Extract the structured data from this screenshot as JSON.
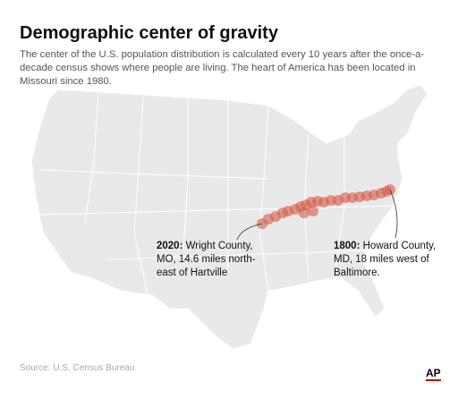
{
  "header": {
    "title": "Demographic center of gravity",
    "subtitle": "The center of the U.S. population distribution is calculated every 10 years after the once-a-decade census shows where people are living. The heart of America has been located in Missouri since 1980."
  },
  "annotations": [
    {
      "year": "2020:",
      "lines": [
        "Wright County,",
        "MO, 14.6 miles north-",
        "east of Hartville"
      ]
    },
    {
      "year": "1800:",
      "lines": [
        "Howard County,",
        "MD, 18 miles west of",
        "Baltimore."
      ]
    }
  ],
  "footer": {
    "source": "Source: U.S. Census Bureau",
    "logo": "AP"
  }
}
